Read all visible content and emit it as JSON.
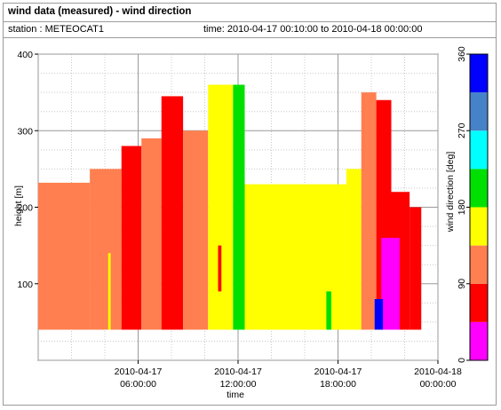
{
  "header": {
    "title": "wind data (measured) - wind direction",
    "station": "station : METEOCAT1",
    "time_range": "time: 2010-04-17 00:10:00 to 2010-04-18 00:00:00"
  },
  "chart_data": {
    "type": "heatmap",
    "xlabel": "time",
    "ylabel": "height [m]",
    "x_ticks": [
      {
        "hours": 6,
        "line1": "2010-04-17",
        "line2": "06:00:00"
      },
      {
        "hours": 12,
        "line1": "2010-04-17",
        "line2": "12:00:00"
      },
      {
        "hours": 18,
        "line1": "2010-04-17",
        "line2": "18:00:00"
      },
      {
        "hours": 24,
        "line1": "2010-04-18",
        "line2": "00:00:00"
      }
    ],
    "xlim_hours": [
      0,
      24
    ],
    "ylim": [
      0,
      400
    ],
    "y_ticks": [
      100,
      200,
      300,
      400
    ],
    "grid": true,
    "height_min": 40,
    "colorbar": {
      "label": "wind direction [deg]",
      "range": [
        0,
        360
      ],
      "ticks": [
        0,
        90,
        180,
        270,
        360
      ],
      "bins": [
        {
          "from": 0,
          "to": 45,
          "color": "#ff00ff"
        },
        {
          "from": 45,
          "to": 90,
          "color": "#ff0000"
        },
        {
          "from": 90,
          "to": 135,
          "color": "#ff7f50"
        },
        {
          "from": 135,
          "to": 180,
          "color": "#ffff00"
        },
        {
          "from": 180,
          "to": 225,
          "color": "#00e000"
        },
        {
          "from": 225,
          "to": 270,
          "color": "#00ffff"
        },
        {
          "from": 270,
          "to": 315,
          "color": "#4682c8"
        },
        {
          "from": 315,
          "to": 360,
          "color": "#0000ff"
        }
      ]
    },
    "segments": [
      {
        "t0": 0.0,
        "t1": 3.1,
        "top": 232,
        "direction": 112,
        "color": "#ff7f50"
      },
      {
        "t0": 3.1,
        "t1": 5.0,
        "top": 250,
        "direction": 112,
        "color": "#ff7f50"
      },
      {
        "t0": 5.0,
        "t1": 6.2,
        "top": 280,
        "direction": 65,
        "color": "#ff0000"
      },
      {
        "t0": 6.2,
        "t1": 7.4,
        "top": 290,
        "direction": 112,
        "color": "#ff7f50"
      },
      {
        "t0": 7.4,
        "t1": 8.7,
        "top": 345,
        "direction": 65,
        "color": "#ff0000"
      },
      {
        "t0": 8.7,
        "t1": 10.2,
        "top": 300,
        "direction": 112,
        "color": "#ff7f50"
      },
      {
        "t0": 10.2,
        "t1": 11.7,
        "top": 360,
        "direction": 160,
        "color": "#ffff00"
      },
      {
        "t0": 11.7,
        "t1": 12.4,
        "top": 360,
        "direction": 200,
        "color": "#00e000"
      },
      {
        "t0": 12.4,
        "t1": 18.5,
        "top": 230,
        "direction": 160,
        "color": "#ffff00"
      },
      {
        "t0": 18.5,
        "t1": 19.4,
        "top": 250,
        "direction": 160,
        "color": "#ffff00"
      },
      {
        "t0": 19.4,
        "t1": 20.3,
        "top": 350,
        "direction": 112,
        "color": "#ff7f50"
      },
      {
        "t0": 20.3,
        "t1": 21.2,
        "top": 340,
        "direction": 65,
        "color": "#ff0000"
      },
      {
        "t0": 21.2,
        "t1": 22.3,
        "top": 220,
        "direction": 65,
        "color": "#ff0000"
      },
      {
        "t0": 22.3,
        "t1": 23.0,
        "top": 200,
        "direction": 65,
        "color": "#ff0000"
      }
    ],
    "patches": [
      {
        "t0": 20.6,
        "t1": 21.7,
        "bottom": 40,
        "top": 160,
        "direction": 20,
        "color": "#ff00ff"
      },
      {
        "t0": 20.2,
        "t1": 20.7,
        "bottom": 40,
        "top": 80,
        "direction": 340,
        "color": "#0000ff"
      },
      {
        "t0": 11.9,
        "t1": 12.2,
        "bottom": 340,
        "top": 360,
        "direction": 200,
        "color": "#00e000"
      },
      {
        "t0": 10.8,
        "t1": 11.0,
        "bottom": 90,
        "top": 150,
        "direction": 65,
        "color": "#ff0000"
      },
      {
        "t0": 4.2,
        "t1": 4.35,
        "bottom": 40,
        "top": 140,
        "direction": 160,
        "color": "#ffff00"
      },
      {
        "t0": 17.3,
        "t1": 17.6,
        "bottom": 40,
        "top": 90,
        "direction": 200,
        "color": "#00e000"
      }
    ]
  }
}
